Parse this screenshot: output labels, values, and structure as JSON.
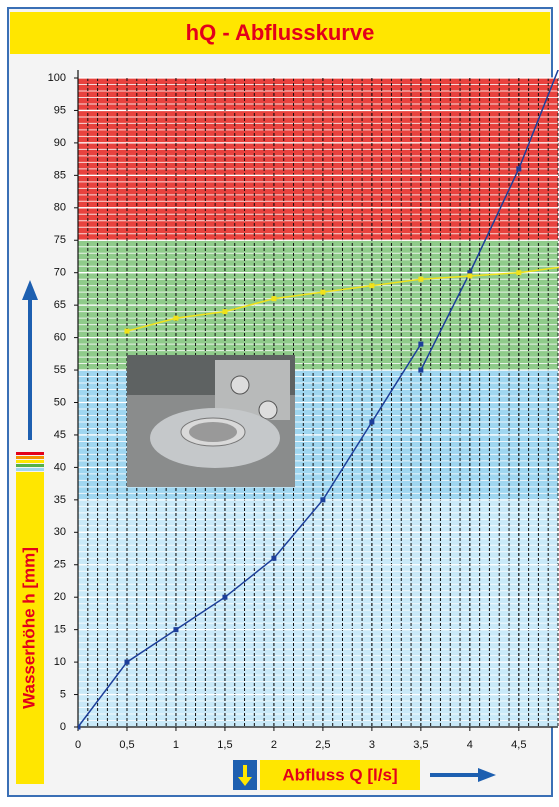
{
  "chart_data": {
    "type": "line",
    "title": "hQ - Abflusskurve",
    "y_label": "Wasserhöhe h [mm]",
    "x_label": "Abfluss Q [l/s]",
    "xlim": [
      0,
      4.9
    ],
    "ylim": [
      0,
      100
    ],
    "xticks": [
      0,
      {
        "value": 0.5,
        "label": "0,5"
      },
      1,
      {
        "value": 1.5,
        "label": "1,5"
      },
      2,
      {
        "value": 2.5,
        "label": "2,5"
      },
      3,
      {
        "value": 3.5,
        "label": "3,5"
      },
      4,
      {
        "value": 4.5,
        "label": "4,5"
      }
    ],
    "yticks": [
      0,
      5,
      10,
      15,
      20,
      25,
      30,
      35,
      40,
      45,
      50,
      55,
      60,
      65,
      70,
      75,
      80,
      85,
      90,
      95,
      100
    ],
    "zones": [
      {
        "from": 0,
        "to": 35,
        "color": "#c9e9f8"
      },
      {
        "from": 35,
        "to": 55,
        "color": "#9fd6f0"
      },
      {
        "from": 55,
        "to": 75,
        "color": "#8fcb8a"
      },
      {
        "from": 75,
        "to": 100,
        "color": "#e8423e"
      }
    ],
    "grid": true,
    "series": [
      {
        "name": "blue",
        "color": "#1d3f9a",
        "x": [
          0,
          0.5,
          1,
          1.5,
          2,
          2.5,
          3,
          3.5,
          null,
          3.5,
          4,
          4.5,
          5
        ],
        "values": [
          0,
          10,
          15,
          20,
          26,
          35,
          47,
          59,
          null,
          55,
          70,
          86,
          105
        ]
      },
      {
        "name": "yellow",
        "color": "#f0e21a",
        "x": [
          0.5,
          1,
          1.5,
          2,
          2.5,
          3,
          3.5,
          4,
          4.5,
          5
        ],
        "values": [
          61,
          63,
          64,
          66,
          67,
          68,
          69,
          69.5,
          70,
          71
        ]
      }
    ]
  }
}
